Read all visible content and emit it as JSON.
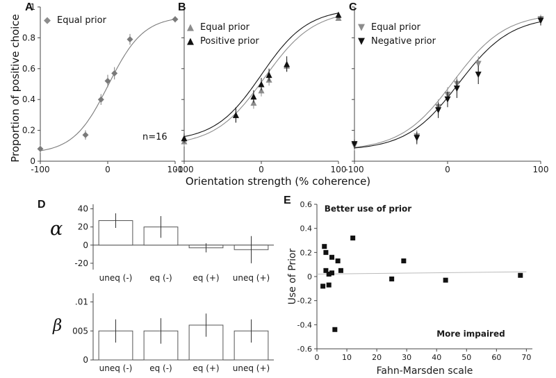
{
  "panel_labels": {
    "A": "A",
    "B": "B",
    "C": "C",
    "D": "D",
    "E": "E"
  },
  "axes_labels": {
    "shared_ylabel": "Proportion of positive choice",
    "shared_xlabel": "Orientation strength (% coherence)",
    "alpha": "α",
    "beta": "β"
  },
  "icons": {
    "diamond": "◆",
    "triangle_up": "▲",
    "triangle_down": "▼"
  },
  "colors": {
    "gray_series": "#8c8c8c",
    "black_series": "#111111",
    "trend_line": "#bbbbbb"
  },
  "chart_data": [
    {
      "id": "A",
      "type": "line",
      "panel": "A",
      "note": "n=16",
      "xlim": [
        -100,
        100
      ],
      "ylim": [
        0,
        1
      ],
      "xticks": [
        -100,
        0,
        100
      ],
      "yticks": [
        0,
        0.2,
        0.4,
        0.6,
        0.8,
        1
      ],
      "ytick_labels": true,
      "margins": {
        "l": 28,
        "r": 8,
        "t": 10,
        "b": 20
      },
      "series": [
        {
          "name": "Equal prior",
          "marker": "diamond",
          "color": "#7a7a7a",
          "x": [
            -100,
            -33,
            -10,
            0,
            10,
            33,
            100
          ],
          "y": [
            0.08,
            0.17,
            0.4,
            0.52,
            0.57,
            0.79,
            0.92
          ],
          "err": [
            0.025,
            0.03,
            0.035,
            0.04,
            0.04,
            0.035,
            0.02
          ],
          "fit": {
            "lo": 0.05,
            "hi": 0.94,
            "mu": 1,
            "sl": 26
          }
        }
      ]
    },
    {
      "id": "B",
      "type": "line",
      "panel": "B",
      "xlim": [
        -100,
        100
      ],
      "ylim": [
        0,
        1
      ],
      "xticks": [
        -100,
        0,
        100
      ],
      "yticks": [
        0,
        0.2,
        0.4,
        0.6,
        0.8,
        1
      ],
      "ytick_labels": false,
      "margins": {
        "l": 10,
        "r": 8,
        "t": 10,
        "b": 20
      },
      "series": [
        {
          "name": "Equal prior",
          "marker": "triangle_up",
          "color": "#8c8c8c",
          "x": [
            -100,
            -33,
            -10,
            0,
            10,
            33,
            100
          ],
          "y": [
            0.13,
            0.3,
            0.38,
            0.46,
            0.53,
            0.62,
            0.93
          ],
          "err": [
            0.035,
            0.05,
            0.04,
            0.04,
            0.04,
            0.04,
            0.02
          ],
          "fit": {
            "lo": 0.1,
            "hi": 0.98,
            "mu": 4,
            "sl": 32
          }
        },
        {
          "name": "Positive prior",
          "marker": "triangle_up",
          "color": "#111111",
          "x": [
            -100,
            -33,
            -10,
            0,
            10,
            33,
            100
          ],
          "y": [
            0.15,
            0.3,
            0.42,
            0.5,
            0.56,
            0.63,
            0.95
          ],
          "err": [
            0.03,
            0.05,
            0.04,
            0.04,
            0.04,
            0.05,
            0.015
          ],
          "fit": {
            "lo": 0.13,
            "hi": 0.99,
            "mu": 0,
            "sl": 30
          }
        }
      ]
    },
    {
      "id": "C",
      "type": "line",
      "panel": "C",
      "xlim": [
        -100,
        100
      ],
      "ylim": [
        0,
        1
      ],
      "xticks": [
        -100,
        0,
        100
      ],
      "yticks": [
        0,
        0.2,
        0.4,
        0.6,
        0.8,
        1
      ],
      "ytick_labels": false,
      "margins": {
        "l": 10,
        "r": 12,
        "t": 10,
        "b": 20
      },
      "series": [
        {
          "name": "Equal prior",
          "marker": "triangle_down",
          "color": "#8c8c8c",
          "x": [
            -100,
            -33,
            -10,
            0,
            10,
            33,
            100
          ],
          "y": [
            0.1,
            0.16,
            0.35,
            0.43,
            0.5,
            0.63,
            0.92
          ],
          "err": [
            0.03,
            0.04,
            0.05,
            0.05,
            0.05,
            0.05,
            0.03
          ],
          "fit": {
            "lo": 0.07,
            "hi": 0.96,
            "mu": 6,
            "sl": 28
          }
        },
        {
          "name": "Negative prior",
          "marker": "triangle_down",
          "color": "#111111",
          "x": [
            -100,
            -33,
            -10,
            0,
            10,
            33,
            100
          ],
          "y": [
            0.11,
            0.15,
            0.33,
            0.4,
            0.47,
            0.56,
            0.91
          ],
          "err": [
            0.03,
            0.04,
            0.05,
            0.05,
            0.06,
            0.06,
            0.03
          ],
          "fit": {
            "lo": 0.07,
            "hi": 0.94,
            "mu": 12,
            "sl": 28
          }
        }
      ]
    },
    {
      "id": "alpha",
      "type": "bar",
      "panel": "D",
      "categories": [
        "uneq (-)",
        "eq (-)",
        "eq (+)",
        "uneq (+)"
      ],
      "values": [
        27,
        20,
        -3,
        -5
      ],
      "errors": [
        8,
        12,
        5,
        15
      ],
      "ylim": [
        -27,
        45
      ],
      "yticks": [
        -20,
        0,
        20,
        40
      ],
      "ytick_labels": [
        "-20",
        "0",
        "20",
        "40"
      ],
      "margins": {
        "l": 34,
        "r": 6,
        "t": 6,
        "b": 24
      },
      "bar_frac": 0.75
    },
    {
      "id": "beta",
      "type": "bar",
      "panel": "D",
      "categories": [
        "uneq (-)",
        "eq (-)",
        "eq (+)",
        "uneq (+)"
      ],
      "values": [
        0.005,
        0.005,
        0.006,
        0.005
      ],
      "errors": [
        0.002,
        0.0022,
        0.002,
        0.002
      ],
      "ylim": [
        0,
        0.0115
      ],
      "yticks": [
        0,
        0.005,
        0.01
      ],
      "ytick_labels": [
        "0",
        "005",
        ".01"
      ],
      "margins": {
        "l": 34,
        "r": 6,
        "t": 8,
        "b": 24
      },
      "bar_frac": 0.75
    },
    {
      "id": "E",
      "type": "scatter",
      "panel": "E",
      "xlabel": "Fahn-Marsden scale",
      "ylabel": "Use of Prior",
      "xlim": [
        0,
        72
      ],
      "ylim": [
        -0.6,
        0.6
      ],
      "xticks": [
        0,
        10,
        20,
        30,
        40,
        50,
        60,
        70
      ],
      "yticks": [
        -0.6,
        -0.4,
        -0.2,
        0,
        0.2,
        0.4,
        0.6
      ],
      "margins": {
        "l": 44,
        "r": 28,
        "t": 10,
        "b": 42
      },
      "points": [
        [
          2,
          -0.08
        ],
        [
          2.5,
          0.25
        ],
        [
          3,
          0.2
        ],
        [
          3,
          0.05
        ],
        [
          4,
          0.02
        ],
        [
          4,
          -0.07
        ],
        [
          5,
          0.16
        ],
        [
          5,
          0.03
        ],
        [
          6,
          -0.44
        ],
        [
          7,
          0.13
        ],
        [
          8,
          0.05
        ],
        [
          12,
          0.32
        ],
        [
          25,
          -0.02
        ],
        [
          29,
          0.13
        ],
        [
          43,
          -0.03
        ],
        [
          68,
          0.01
        ]
      ],
      "trend": {
        "x1": 0,
        "y1": 0.02,
        "x2": 70,
        "y2": 0.04
      },
      "annotations": [
        {
          "text": "Better use of prior",
          "x": 2.5,
          "y": 0.54
        },
        {
          "text": "More impaired",
          "x": 40,
          "y": -0.5
        }
      ]
    }
  ]
}
